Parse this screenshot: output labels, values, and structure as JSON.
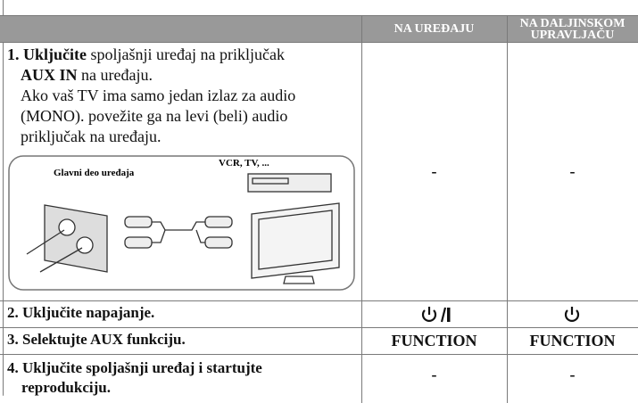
{
  "table": {
    "headers": [
      "NA UREĐAJU",
      "NA DALJINSKOM UPRAVLJAČU"
    ],
    "rows": [
      {
        "label": "1. Uključite",
        "text": "spoljašnji uređaj na priključak",
        "port": "AUX IN",
        "text2": "na uređaju.",
        "note_lines": [
          "Ako vaš TV ima samo jedan izlaz za audio",
          "(MONO). povežite ga na levi (beli) audio",
          "priključak na uređaju."
        ],
        "figure": {
          "unit_label": "Glavni deo uređaja",
          "device_label": "VCR, TV, ..."
        },
        "unit": "-",
        "remote": "-"
      },
      {
        "label": "2. Uključite napajanje."
      },
      {
        "label": "3. Selektujte AUX funkciju.",
        "unit": "FUNCTION",
        "remote": "FUNCTION"
      },
      {
        "label_lines": [
          "4. Uključite spoljašnji uređaj i startujte",
          "reprodukciju."
        ],
        "unit": "-",
        "remote": "-"
      }
    ]
  }
}
